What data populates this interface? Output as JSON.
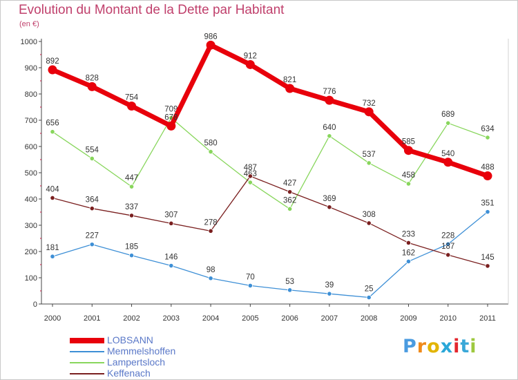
{
  "title": "Evolution du Montant de la Dette par Habitant",
  "subtitle": "(en €)",
  "logo": "Proxiti",
  "chart_data": {
    "type": "line",
    "title": "Evolution du Montant de la Dette par Habitant",
    "subtitle": "(en €)",
    "categories": [
      "2000",
      "2001",
      "2002",
      "2003",
      "2004",
      "2005",
      "2006",
      "2007",
      "2008",
      "2009",
      "2010",
      "2011"
    ],
    "ylim": [
      0,
      1000
    ],
    "yticks": [
      0,
      100,
      200,
      300,
      400,
      500,
      600,
      700,
      800,
      900,
      1000
    ],
    "grid": false,
    "legend_position": "bottom-left",
    "series": [
      {
        "name": "LOBSANN",
        "color": "#e8000b",
        "values": [
          892,
          828,
          754,
          678,
          986,
          912,
          821,
          776,
          732,
          585,
          540,
          488
        ]
      },
      {
        "name": "Memmelshoffen",
        "color": "#3d8fd6",
        "values": [
          181,
          227,
          185,
          146,
          98,
          70,
          53,
          39,
          25,
          162,
          228,
          351
        ]
      },
      {
        "name": "Lampertsloch",
        "color": "#88d65c",
        "values": [
          656,
          554,
          447,
          709,
          580,
          463,
          362,
          640,
          537,
          458,
          689,
          634
        ]
      },
      {
        "name": "Keffenach",
        "color": "#7a1f1f",
        "values": [
          404,
          364,
          337,
          307,
          278,
          487,
          427,
          369,
          308,
          233,
          187,
          145
        ]
      }
    ]
  }
}
